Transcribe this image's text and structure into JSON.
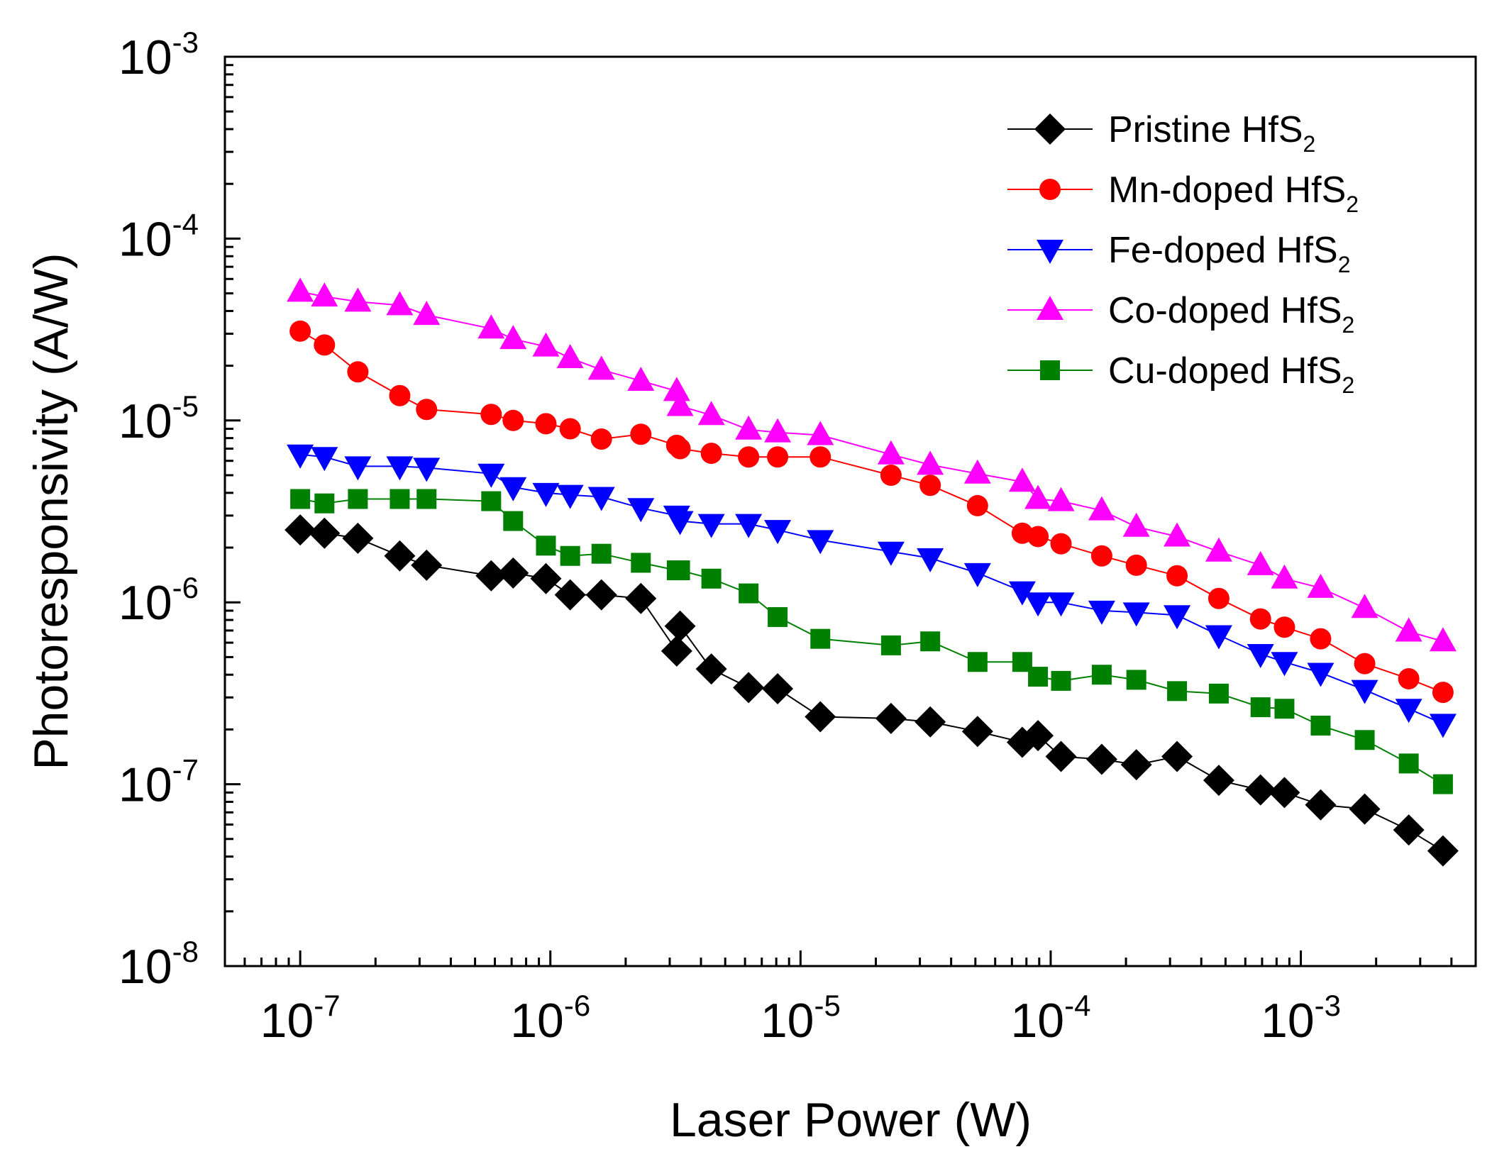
{
  "chart_data": {
    "type": "scatter",
    "title": "",
    "xlabel": "Laser Power (W)",
    "ylabel": "Photoresponsivity (A/W)",
    "xscale": "log",
    "yscale": "log",
    "xlim": [
      5e-08,
      0.005
    ],
    "ylim": [
      1e-08,
      0.001
    ],
    "x_ticks": [
      {
        "base": "10",
        "exp": "-7"
      },
      {
        "base": "10",
        "exp": "-6"
      },
      {
        "base": "10",
        "exp": "-5"
      },
      {
        "base": "10",
        "exp": "-4"
      },
      {
        "base": "10",
        "exp": "-3"
      }
    ],
    "y_ticks": [
      {
        "base": "10",
        "exp": "-8"
      },
      {
        "base": "10",
        "exp": "-7"
      },
      {
        "base": "10",
        "exp": "-6"
      },
      {
        "base": "10",
        "exp": "-5"
      },
      {
        "base": "10",
        "exp": "-4"
      },
      {
        "base": "10",
        "exp": "-3"
      }
    ],
    "legend_position": "top-right",
    "x": [
      1e-07,
      1.25e-07,
      1.7e-07,
      2.5e-07,
      3.2e-07,
      5.8e-07,
      7.1e-07,
      9.6e-07,
      1.2e-06,
      1.6e-06,
      2.3e-06,
      3.2e-06,
      3.3e-06,
      4.4e-06,
      6.2e-06,
      8.1e-06,
      1.2e-05,
      2.3e-05,
      3.3e-05,
      5.1e-05,
      7.7e-05,
      8.9e-05,
      0.00011,
      0.00016,
      0.00022,
      0.00032,
      0.00047,
      0.00069,
      0.00086,
      0.0012,
      0.0018,
      0.0027,
      0.0037
    ],
    "series": [
      {
        "name": "Pristine HfS",
        "name_sub": "2",
        "color": "#000000",
        "marker": "diamond",
        "values": [
          2.5e-06,
          2.4e-06,
          2.25e-06,
          1.8e-06,
          1.6e-06,
          1.4e-06,
          1.45e-06,
          1.35e-06,
          1.1e-06,
          1.1e-06,
          1.05e-06,
          5.4e-07,
          7.4e-07,
          4.3e-07,
          3.4e-07,
          3.35e-07,
          2.35e-07,
          2.3e-07,
          2.2e-07,
          1.95e-07,
          1.7e-07,
          1.85e-07,
          1.42e-07,
          1.37e-07,
          1.28e-07,
          1.42e-07,
          1.05e-07,
          9.3e-08,
          9e-08,
          7.7e-08,
          7.3e-08,
          5.6e-08,
          4.3e-08
        ]
      },
      {
        "name": "Mn-doped HfS",
        "name_sub": "2",
        "color": "#ff0000",
        "marker": "circle",
        "values": [
          3.1e-05,
          2.6e-05,
          1.85e-05,
          1.37e-05,
          1.15e-05,
          1.08e-05,
          1e-05,
          9.6e-06,
          9e-06,
          7.9e-06,
          8.4e-06,
          7.3e-06,
          7e-06,
          6.6e-06,
          6.3e-06,
          6.3e-06,
          6.3e-06,
          5e-06,
          4.4e-06,
          3.4e-06,
          2.4e-06,
          2.3e-06,
          2.1e-06,
          1.8e-06,
          1.6e-06,
          1.4e-06,
          1.05e-06,
          8.1e-07,
          7.3e-07,
          6.3e-07,
          4.6e-07,
          3.8e-07,
          3.2e-07
        ]
      },
      {
        "name": "Fe-doped HfS",
        "name_sub": "2",
        "color": "#0000ff",
        "marker": "triangle-down",
        "values": [
          6.5e-06,
          6.3e-06,
          5.6e-06,
          5.6e-06,
          5.5e-06,
          5.1e-06,
          4.3e-06,
          4e-06,
          3.9e-06,
          3.8e-06,
          3.3e-06,
          3e-06,
          2.8e-06,
          2.7e-06,
          2.7e-06,
          2.5e-06,
          2.2e-06,
          1.9e-06,
          1.75e-06,
          1.45e-06,
          1.15e-06,
          1e-06,
          1e-06,
          9e-07,
          8.8e-07,
          8.5e-07,
          6.6e-07,
          5.2e-07,
          4.7e-07,
          4.1e-07,
          3.3e-07,
          2.6e-07,
          2.15e-07
        ]
      },
      {
        "name": "Co-doped HfS",
        "name_sub": "2",
        "color": "#ff00ff",
        "marker": "triangle-up",
        "values": [
          5.1e-05,
          4.8e-05,
          4.5e-05,
          4.3e-05,
          3.8e-05,
          3.2e-05,
          2.8e-05,
          2.55e-05,
          2.2e-05,
          1.9e-05,
          1.65e-05,
          1.45e-05,
          1.2e-05,
          1.07e-05,
          8.9e-06,
          8.6e-06,
          8.3e-06,
          6.5e-06,
          5.7e-06,
          5.1e-06,
          4.6e-06,
          3.7e-06,
          3.6e-06,
          3.2e-06,
          2.6e-06,
          2.3e-06,
          1.9e-06,
          1.6e-06,
          1.35e-06,
          1.2e-06,
          9.3e-07,
          6.9e-07,
          6.1e-07
        ]
      },
      {
        "name": "Cu-doped HfS",
        "name_sub": "2",
        "color": "#008000",
        "marker": "square",
        "values": [
          3.7e-06,
          3.5e-06,
          3.7e-06,
          3.7e-06,
          3.7e-06,
          3.6e-06,
          2.8e-06,
          2.05e-06,
          1.8e-06,
          1.85e-06,
          1.65e-06,
          1.5e-06,
          1.5e-06,
          1.35e-06,
          1.12e-06,
          8.3e-07,
          6.3e-07,
          5.8e-07,
          6.1e-07,
          4.7e-07,
          4.7e-07,
          3.9e-07,
          3.7e-07,
          4e-07,
          3.75e-07,
          3.25e-07,
          3.15e-07,
          2.65e-07,
          2.6e-07,
          2.1e-07,
          1.75e-07,
          1.3e-07,
          1e-07
        ]
      }
    ]
  }
}
